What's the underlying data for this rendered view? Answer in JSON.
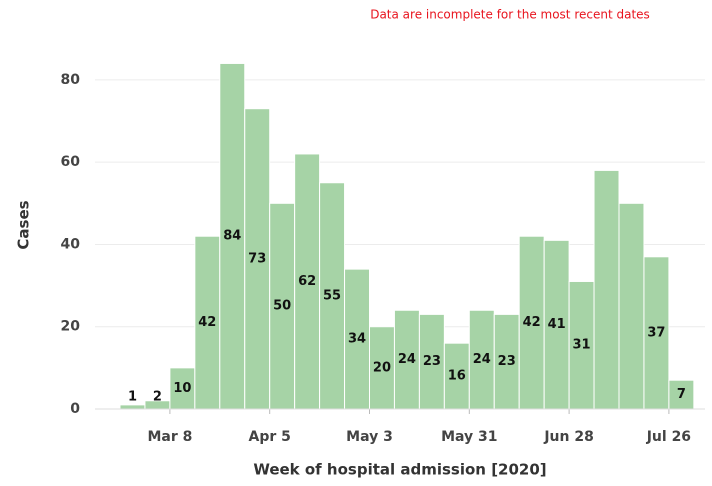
{
  "chart_data": {
    "type": "bar",
    "note": "Data are incomplete for the most recent dates",
    "xlabel": "Week of hospital admission [2020]",
    "ylabel": "Cases",
    "categories": [
      null,
      null,
      "Mar 8",
      null,
      null,
      null,
      "Apr 5",
      null,
      null,
      null,
      "May 3",
      null,
      null,
      null,
      "May 31",
      null,
      null,
      null,
      "Jun 28",
      null,
      null,
      null,
      "Jul 26"
    ],
    "values": [
      1,
      2,
      10,
      42,
      84,
      73,
      50,
      62,
      55,
      34,
      20,
      24,
      23,
      16,
      24,
      23,
      42,
      41,
      31,
      58,
      50,
      37,
      7
    ],
    "value_labels": [
      "1",
      "2",
      "10",
      "42",
      "84",
      "73",
      "50",
      "62",
      "55",
      "34",
      "20",
      "24",
      "23",
      "16",
      "24",
      "23",
      "42",
      "41",
      "31",
      null,
      null,
      "37",
      "7"
    ],
    "color": "#a6d3a6",
    "ylim": [
      0,
      88
    ],
    "yticks": [
      0,
      20,
      40,
      60,
      80
    ],
    "grid": true
  }
}
